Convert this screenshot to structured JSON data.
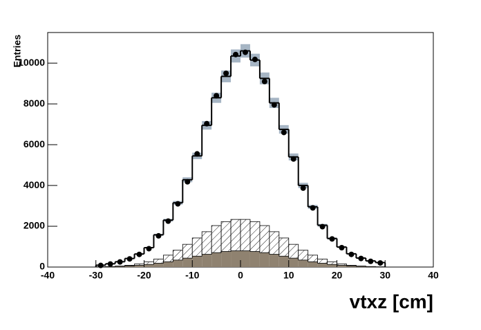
{
  "chart_data": {
    "type": "histogram",
    "xlabel": "vtxz [cm]",
    "ylabel": "Entries",
    "bins": [
      -30,
      -28,
      -26,
      -24,
      -22,
      -20,
      -18,
      -16,
      -14,
      -12,
      -10,
      -8,
      -6,
      -4,
      -2,
      0,
      2,
      4,
      6,
      8,
      10,
      12,
      14,
      16,
      18,
      20,
      22,
      24,
      26,
      28,
      30
    ],
    "xlim": [
      -40,
      40
    ],
    "xticks": [
      -40,
      -30,
      -20,
      -10,
      0,
      10,
      20,
      30,
      40
    ],
    "ylim": [
      0,
      11500
    ],
    "yticks": [
      0,
      2000,
      4000,
      6000,
      8000,
      10000
    ],
    "series": [
      {
        "style": "filled",
        "color": "#8f8270",
        "values": [
          12,
          21,
          35,
          57,
          88,
          131,
          188,
          259,
          343,
          437,
          534,
          626,
          706,
          764,
          796,
          796,
          764,
          706,
          626,
          534,
          437,
          343,
          259,
          188,
          131,
          88,
          57,
          35,
          21,
          12
        ]
      },
      {
        "style": "hatched",
        "color": "#000000",
        "values": [
          1,
          5,
          15,
          31,
          65,
          120,
          203,
          324,
          481,
          677,
          892,
          1107,
          1327,
          1464,
          1540,
          1540,
          1464,
          1327,
          1107,
          892,
          677,
          481,
          324,
          203,
          120,
          65,
          31,
          15,
          5,
          1
        ]
      },
      {
        "style": "step",
        "color": "#000000",
        "band_color": "#a6b5c4",
        "values": [
          90,
          160,
          260,
          420,
          640,
          950,
          1580,
          2300,
          3150,
          4280,
          5450,
          6950,
          8300,
          9350,
          10350,
          10600,
          10150,
          9250,
          8050,
          6750,
          5400,
          4000,
          2950,
          2050,
          1400,
          980,
          650,
          440,
          300,
          220
        ],
        "errors": [
          5,
          8,
          10,
          14,
          20,
          28,
          45,
          65,
          90,
          120,
          160,
          210,
          250,
          290,
          320,
          330,
          310,
          290,
          250,
          210,
          170,
          130,
          95,
          65,
          45,
          32,
          22,
          15,
          10,
          8
        ]
      },
      {
        "style": "points",
        "color": "#000000",
        "values": [
          80,
          150,
          250,
          400,
          620,
          900,
          1530,
          2250,
          3100,
          4180,
          5550,
          7030,
          8400,
          9500,
          10420,
          10530,
          10180,
          9100,
          7950,
          6600,
          5300,
          3870,
          2900,
          1980,
          1380,
          950,
          620,
          420,
          280,
          200
        ]
      }
    ]
  }
}
